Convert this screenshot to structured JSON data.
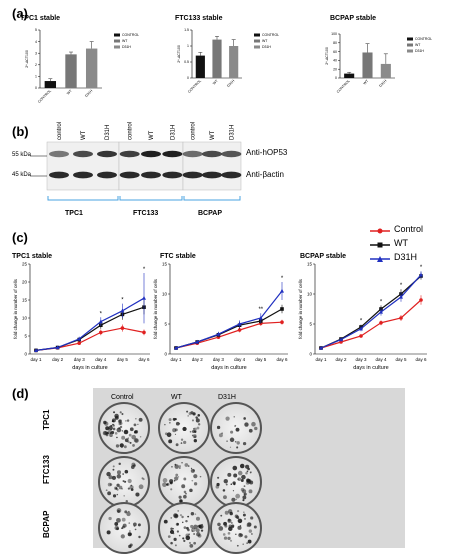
{
  "panels": {
    "a": "(a)",
    "b": "(b)",
    "c": "(c)",
    "d": "(d)"
  },
  "panel_a": {
    "ylabel": "2^-ΔCT100",
    "legend": [
      "CONTROL",
      "WT",
      "D31H"
    ],
    "colors": {
      "control": "#111111",
      "wt": "#777777",
      "d31h": "#8a8a8a"
    }
  },
  "panel_b": {
    "markers": [
      "55 kDa",
      "45 kDa"
    ],
    "antibodies": [
      "Anti-hOP53",
      "Anti-βactin"
    ],
    "lanes": [
      "control",
      "WT",
      "D31H",
      "control",
      "WT",
      "D31H",
      "control",
      "WT",
      "D31H"
    ],
    "groups": [
      "TPC1",
      "FTC133",
      "BCPAP"
    ]
  },
  "panel_c": {
    "legend": [
      {
        "name": "Control",
        "color": "#e02020"
      },
      {
        "name": "WT",
        "color": "#111111"
      },
      {
        "name": "D31H",
        "color": "#2030c0"
      }
    ],
    "xlabel": "days in culture",
    "ylabel": "fold change in number of cells"
  },
  "panel_d": {
    "columns": [
      "Control",
      "WT",
      "D31H"
    ],
    "rows": [
      "TPC1",
      "FTC133",
      "BCPAP"
    ]
  },
  "chart_data": [
    {
      "type": "bar",
      "title": "TPC1 stable",
      "categories": [
        "CONTROL",
        "WT",
        "D31H"
      ],
      "values": [
        0.6,
        2.9,
        3.4
      ],
      "errors": [
        0.2,
        0.2,
        0.6
      ],
      "ylim": [
        0,
        5
      ],
      "yticks": [
        0,
        1,
        2,
        3,
        4,
        5
      ]
    },
    {
      "type": "bar",
      "title": "FTC133 stable",
      "categories": [
        "CONTROL",
        "WT",
        "D31H"
      ],
      "values": [
        0.7,
        1.2,
        1.0
      ],
      "errors": [
        0.1,
        0.1,
        0.2
      ],
      "ylim": [
        0,
        1.5
      ],
      "yticks": [
        0,
        0.5,
        1.0,
        1.5
      ]
    },
    {
      "type": "bar",
      "title": "BCPAP stable",
      "categories": [
        "CONTROL",
        "WT",
        "D31H"
      ],
      "values": [
        10,
        58,
        32
      ],
      "errors": [
        3,
        20,
        23
      ],
      "ylim": [
        0,
        100
      ],
      "yticks": [
        0,
        20,
        40,
        60,
        80,
        100
      ]
    },
    {
      "type": "line",
      "title": "TPC1 stable",
      "categories": [
        "day 1",
        "day 2",
        "day 3",
        "day 4",
        "day 5",
        "day 6"
      ],
      "ylim": [
        0,
        25
      ],
      "yticks": [
        0,
        5,
        10,
        15,
        20,
        25
      ],
      "series": [
        {
          "name": "Control",
          "values": [
            1,
            1.7,
            3,
            6,
            7.2,
            6
          ],
          "errors": [
            0.2,
            0.3,
            0.4,
            0.8,
            1,
            0.8
          ]
        },
        {
          "name": "WT",
          "values": [
            1,
            1.8,
            4,
            8,
            11,
            13
          ],
          "errors": [
            0.2,
            0.3,
            0.6,
            1,
            1.5,
            2
          ]
        },
        {
          "name": "D31H",
          "values": [
            1,
            1.8,
            4.2,
            9,
            12,
            15.5
          ],
          "errors": [
            0.2,
            0.3,
            0.6,
            1.2,
            2,
            7
          ]
        }
      ],
      "annotations": [
        "*",
        "*",
        "*"
      ]
    },
    {
      "type": "line",
      "title": "FTC stable",
      "categories": [
        "day 1",
        "day 2",
        "day 3",
        "day 4",
        "day 5",
        "day 6"
      ],
      "ylim": [
        0,
        15
      ],
      "yticks": [
        0,
        5,
        10,
        15
      ],
      "series": [
        {
          "name": "Control",
          "values": [
            1,
            1.8,
            2.8,
            4,
            5.1,
            5.3
          ],
          "errors": [
            0.1,
            0.2,
            0.3,
            0.4,
            0.4,
            0.4
          ]
        },
        {
          "name": "WT",
          "values": [
            1,
            2,
            3.2,
            4.8,
            5.5,
            7.5
          ],
          "errors": [
            0.1,
            0.2,
            0.4,
            0.6,
            0.5,
            0.7
          ]
        },
        {
          "name": "D31H",
          "values": [
            1,
            2,
            3.3,
            5,
            6,
            10.5
          ],
          "errors": [
            0.1,
            0.2,
            0.4,
            0.6,
            0.8,
            1.5
          ]
        }
      ],
      "annotations": [
        "**",
        "*"
      ]
    },
    {
      "type": "line",
      "title": "BCPAP stable",
      "categories": [
        "day 1",
        "day 2",
        "day 3",
        "day 4",
        "day 5",
        "day 6"
      ],
      "ylim": [
        0,
        15
      ],
      "yticks": [
        0,
        5,
        10,
        15
      ],
      "series": [
        {
          "name": "Control",
          "values": [
            1,
            2,
            3,
            5.2,
            6,
            9
          ],
          "errors": [
            0.1,
            0.2,
            0.3,
            0.4,
            0.5,
            0.8
          ]
        },
        {
          "name": "WT",
          "values": [
            1,
            2.5,
            4.5,
            7.5,
            10,
            13
          ],
          "errors": [
            0.1,
            0.2,
            0.4,
            0.6,
            0.8,
            0.6
          ]
        },
        {
          "name": "D31H",
          "values": [
            1,
            2.4,
            4.2,
            7,
            9.5,
            13.2
          ],
          "errors": [
            0.1,
            0.2,
            0.4,
            0.6,
            0.8,
            0.6
          ]
        }
      ],
      "annotations": [
        "*",
        "*",
        "*",
        "*"
      ]
    }
  ]
}
